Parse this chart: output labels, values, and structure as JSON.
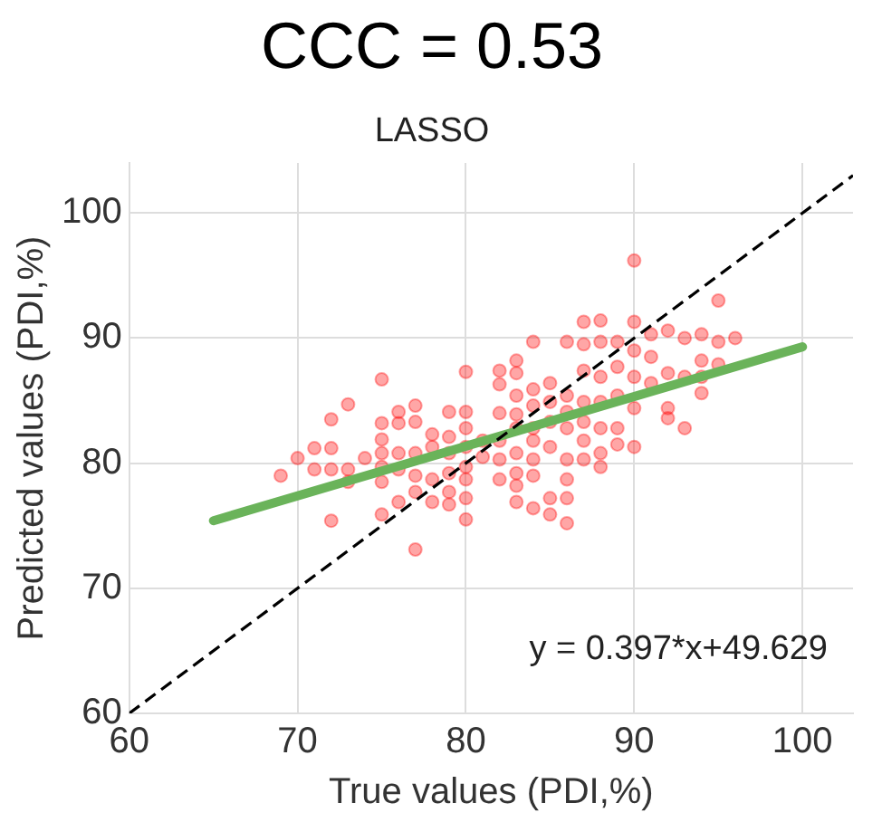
{
  "chart_data": {
    "type": "scatter",
    "title": "CCC = 0.53",
    "subtitle": "LASSO",
    "xlabel": "True values (PDI,%)",
    "ylabel": "Predicted values (PDI,%)",
    "xlim": [
      60,
      103
    ],
    "ylim": [
      60,
      104
    ],
    "xticks": [
      60,
      70,
      80,
      90,
      100
    ],
    "yticks": [
      60,
      70,
      80,
      90,
      100
    ],
    "grid": true,
    "annotations": [
      "y = 0.397*x+49.629"
    ],
    "series": [
      {
        "color": "#ff0000",
        "marker": "circle",
        "x": [
          69,
          70,
          71,
          71,
          72,
          72,
          72,
          72,
          73,
          73,
          73,
          74,
          75,
          75,
          75,
          75,
          75,
          75,
          75,
          76,
          76,
          76,
          76,
          76,
          77,
          77,
          77,
          77,
          77,
          77,
          78,
          78,
          78,
          78,
          79,
          79,
          79,
          79,
          79,
          79,
          80,
          80,
          80,
          80,
          80,
          80,
          80,
          80,
          81,
          81,
          82,
          82,
          82,
          82,
          82,
          82,
          83,
          83,
          83,
          83,
          83,
          83,
          83,
          83,
          83,
          84,
          84,
          84,
          84,
          84,
          84,
          84,
          84,
          85,
          85,
          85,
          85,
          85,
          85,
          86,
          86,
          86,
          86,
          86,
          86,
          86,
          86,
          87,
          87,
          87,
          87,
          87,
          87,
          87,
          88,
          88,
          88,
          88,
          88,
          88,
          88,
          89,
          89,
          89,
          89,
          89,
          90,
          90,
          90,
          90,
          90,
          90,
          91,
          91,
          91,
          92,
          92,
          92,
          92,
          93,
          93,
          93,
          94,
          94,
          94,
          94,
          95,
          95,
          95,
          96
        ],
        "values": [
          79.0,
          80.4,
          81.2,
          79.5,
          83.5,
          81.2,
          79.5,
          75.4,
          84.7,
          79.5,
          78.5,
          80.4,
          86.7,
          83.2,
          81.9,
          80.8,
          79.7,
          78.5,
          75.9,
          84.1,
          83.2,
          80.8,
          79.5,
          76.9,
          84.6,
          83.3,
          80.8,
          79.0,
          77.7,
          73.1,
          82.3,
          81.3,
          78.7,
          76.9,
          84.1,
          82.1,
          80.8,
          79.2,
          77.7,
          76.7,
          87.3,
          84.1,
          82.8,
          81.3,
          79.7,
          78.7,
          77.2,
          75.5,
          81.8,
          80.5,
          87.4,
          86.3,
          84.0,
          81.8,
          80.3,
          78.7,
          88.2,
          87.2,
          85.4,
          83.9,
          82.8,
          80.8,
          79.2,
          78.2,
          76.9,
          89.7,
          85.9,
          84.6,
          82.8,
          81.8,
          80.3,
          79.0,
          76.4,
          86.4,
          84.9,
          83.3,
          81.3,
          77.2,
          75.9,
          89.7,
          85.4,
          84.1,
          82.8,
          80.3,
          78.7,
          77.2,
          75.2,
          91.3,
          89.5,
          87.4,
          84.9,
          83.3,
          81.8,
          80.3,
          91.4,
          89.7,
          86.9,
          84.9,
          82.8,
          80.8,
          79.7,
          89.7,
          87.7,
          85.4,
          82.8,
          81.5,
          96.2,
          91.3,
          89.0,
          86.9,
          84.4,
          81.3,
          90.3,
          88.5,
          86.4,
          90.6,
          87.2,
          84.4,
          83.6,
          90.0,
          86.9,
          82.8,
          90.3,
          88.2,
          86.9,
          85.6,
          93.0,
          89.7,
          87.9,
          90.0
        ]
      },
      {
        "type": "line",
        "color": "#6ab35a",
        "marker": "none",
        "line_style": "solid",
        "x": [
          65,
          100
        ],
        "values": [
          75.4,
          89.3
        ]
      },
      {
        "type": "line",
        "color": "#000000",
        "marker": "none",
        "line_style": "dashed",
        "x": [
          60,
          103
        ],
        "values": [
          60,
          103
        ]
      }
    ]
  }
}
